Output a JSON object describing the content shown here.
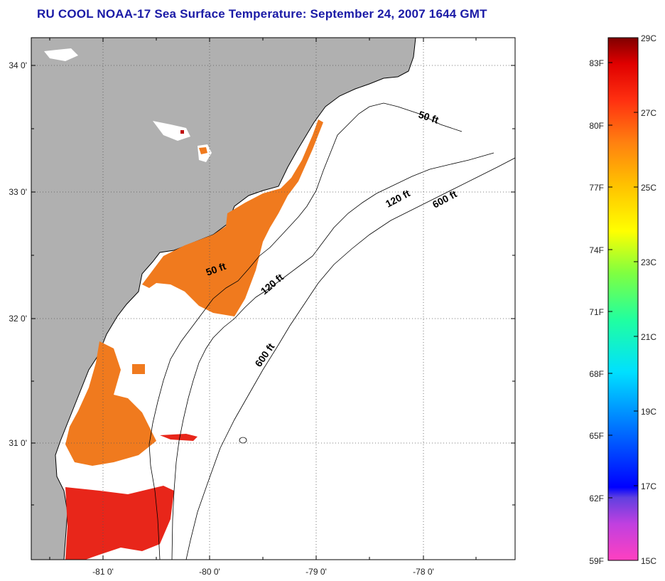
{
  "title": "RU COOL  NOAA-17  Sea Surface Temperature:  September 24, 2007 1644 GMT",
  "map": {
    "lat_labels": [
      "34 0'",
      "33 0'",
      "32 0'",
      "31 0'"
    ],
    "lon_labels": [
      "-81 0'",
      "-80 0'",
      "-79 0'",
      "-78 0'"
    ],
    "depth_contours": [
      {
        "label": "50 ft",
        "instances": 2
      },
      {
        "label": "120 ft",
        "instances": 2
      },
      {
        "label": "600 ft",
        "instances": 2
      }
    ],
    "contour_labels": {
      "c50a": "50 ft",
      "c50b": "50 ft",
      "c120a": "120 ft",
      "c120b": "120 ft",
      "c600a": "600 ft",
      "c600b": "600 ft"
    },
    "colors": {
      "land": "#b0b0b0",
      "ocean": "#ffffff",
      "coast": "#000000",
      "sst_main": "#f07a1e",
      "sst_warm": "#e8261a"
    }
  },
  "colorbar": {
    "fahrenheit_labels": [
      "83F",
      "80F",
      "77F",
      "74F",
      "71F",
      "68F",
      "65F",
      "62F",
      "59F"
    ],
    "celsius_labels": [
      "29C",
      "27C",
      "25C",
      "23C",
      "21C",
      "19C",
      "17C",
      "15C"
    ],
    "range_c": [
      15,
      29
    ],
    "range_f": [
      59,
      84
    ]
  }
}
